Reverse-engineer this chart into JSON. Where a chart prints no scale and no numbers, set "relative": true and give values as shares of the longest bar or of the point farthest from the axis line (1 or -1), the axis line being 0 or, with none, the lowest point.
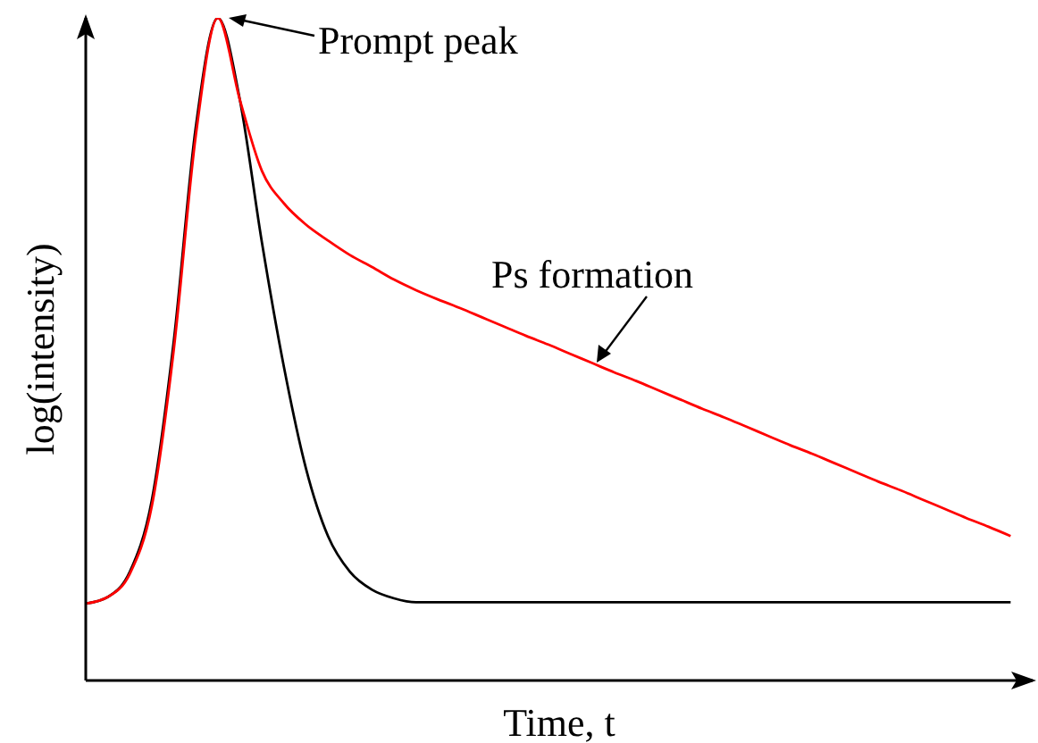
{
  "chart_data": {
    "type": "line",
    "relative": true,
    "xlabel": "Time, t",
    "ylabel": "log(intensity)",
    "marker": "none",
    "line_style": "solid",
    "annotations": [
      "Prompt peak",
      "Ps formation"
    ],
    "categories": [
      null,
      null,
      null,
      null,
      null,
      null,
      null,
      null,
      null,
      null,
      null,
      null,
      null,
      null,
      null,
      null,
      null,
      null,
      null,
      null,
      null,
      null,
      null,
      null,
      null,
      null,
      null,
      null,
      null,
      null,
      null,
      null,
      null,
      null,
      null,
      null,
      null,
      null,
      null,
      null,
      null,
      null,
      null
    ],
    "series": [
      {
        "color": "#000000",
        "values": [
          0.116,
          0.126,
          0.164,
          0.272,
          0.513,
          0.836,
          1,
          0.876,
          0.661,
          0.473,
          0.32,
          0.218,
          0.164,
          0.137,
          0.124,
          0.118,
          0.118,
          0.118,
          0.118,
          0.118,
          0.118,
          0.118,
          0.118,
          0.118,
          0.118,
          0.118,
          0.118,
          0.118,
          0.118,
          0.118,
          0.118,
          0.118,
          0.118,
          0.118,
          0.118,
          0.118,
          0.118,
          0.118,
          0.118,
          0.118,
          0.118,
          0.118,
          0.118
        ]
      },
      {
        "color": "#ff0000",
        "values": [
          0.116,
          0.126,
          0.161,
          0.263,
          0.5,
          0.823,
          1,
          0.876,
          0.769,
          0.72,
          0.688,
          0.664,
          0.642,
          0.624,
          0.605,
          0.589,
          0.575,
          0.562,
          0.548,
          0.534,
          0.52,
          0.507,
          0.493,
          0.479,
          0.465,
          0.452,
          0.438,
          0.424,
          0.41,
          0.397,
          0.383,
          0.369,
          0.355,
          0.342,
          0.328,
          0.314,
          0.3,
          0.287,
          0.273,
          0.259,
          0.245,
          0.232,
          0.218
        ]
      }
    ]
  }
}
